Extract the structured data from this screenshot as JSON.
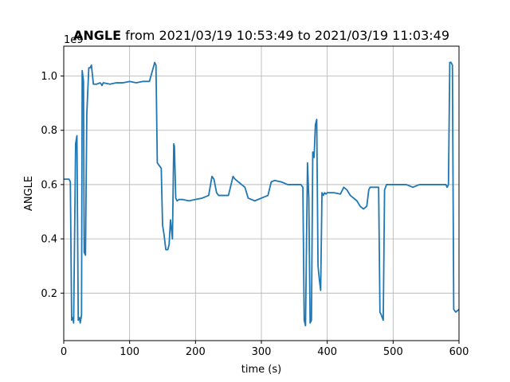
{
  "chart_data": {
    "type": "line",
    "title": {
      "bold": "ANGLE",
      "rest": " from 2021/03/19 10:53:49 to 2021/03/19 11:03:49"
    },
    "xlabel": "time (s)",
    "ylabel": "ANGLE",
    "offset_label": "1e9",
    "xlim": [
      0,
      600
    ],
    "ylim": [
      0.025,
      1.11
    ],
    "y_scale_note": "values in units of 1e9",
    "xticks": [
      0,
      100,
      200,
      300,
      400,
      500,
      600
    ],
    "yticks": [
      0.2,
      0.4,
      0.6,
      0.8,
      1.0
    ],
    "ytick_labels": [
      "0.2",
      "0.4",
      "0.6",
      "0.8",
      "1.0"
    ],
    "grid": true,
    "series": [
      {
        "color": "#1f77b4",
        "x": [
          0,
          8,
          10,
          12,
          14,
          15,
          18,
          20,
          22,
          24,
          25,
          27,
          28,
          30,
          31,
          33,
          35,
          38,
          40,
          42,
          45,
          50,
          55,
          57,
          58,
          60,
          70,
          80,
          90,
          100,
          110,
          120,
          130,
          137,
          138,
          140,
          142,
          145,
          148,
          150,
          152,
          155,
          158,
          160,
          162,
          165,
          167,
          168,
          170,
          172,
          175,
          180,
          190,
          200,
          210,
          220,
          225,
          228,
          232,
          235,
          240,
          250,
          257,
          260,
          265,
          270,
          275,
          280,
          285,
          290,
          300,
          310,
          315,
          320,
          330,
          340,
          345,
          350,
          360,
          363,
          365,
          367,
          370,
          372,
          374,
          376,
          378,
          380,
          382,
          384,
          386,
          388,
          390,
          392,
          394,
          396,
          398,
          400,
          410,
          420,
          425,
          430,
          435,
          440,
          445,
          450,
          455,
          460,
          463,
          465,
          470,
          478,
          480,
          482,
          485,
          487,
          490,
          500,
          510,
          520,
          530,
          540,
          550,
          560,
          570,
          578,
          580,
          582,
          584,
          586,
          588,
          590,
          592,
          595,
          600
        ],
        "values": [
          0.62,
          0.62,
          0.61,
          0.1,
          0.11,
          0.09,
          0.75,
          0.78,
          0.1,
          0.11,
          0.09,
          0.12,
          1.02,
          0.98,
          0.35,
          0.34,
          0.86,
          1.03,
          1.03,
          1.04,
          0.97,
          0.97,
          0.975,
          0.97,
          0.965,
          0.975,
          0.97,
          0.975,
          0.975,
          0.98,
          0.975,
          0.98,
          0.98,
          1.04,
          1.05,
          1.04,
          0.68,
          0.67,
          0.66,
          0.45,
          0.42,
          0.36,
          0.36,
          0.38,
          0.47,
          0.4,
          0.75,
          0.74,
          0.55,
          0.54,
          0.545,
          0.545,
          0.54,
          0.545,
          0.55,
          0.56,
          0.63,
          0.62,
          0.57,
          0.56,
          0.56,
          0.56,
          0.63,
          0.62,
          0.61,
          0.6,
          0.59,
          0.55,
          0.545,
          0.54,
          0.55,
          0.56,
          0.61,
          0.615,
          0.61,
          0.6,
          0.6,
          0.6,
          0.6,
          0.59,
          0.1,
          0.08,
          0.68,
          0.55,
          0.09,
          0.1,
          0.72,
          0.7,
          0.82,
          0.84,
          0.3,
          0.25,
          0.21,
          0.57,
          0.56,
          0.57,
          0.565,
          0.57,
          0.57,
          0.565,
          0.59,
          0.58,
          0.56,
          0.55,
          0.54,
          0.52,
          0.51,
          0.52,
          0.58,
          0.59,
          0.59,
          0.59,
          0.13,
          0.12,
          0.1,
          0.58,
          0.6,
          0.6,
          0.6,
          0.6,
          0.59,
          0.6,
          0.6,
          0.6,
          0.6,
          0.6,
          0.6,
          0.59,
          0.6,
          1.05,
          1.05,
          1.04,
          0.14,
          0.13,
          0.14
        ]
      }
    ]
  }
}
